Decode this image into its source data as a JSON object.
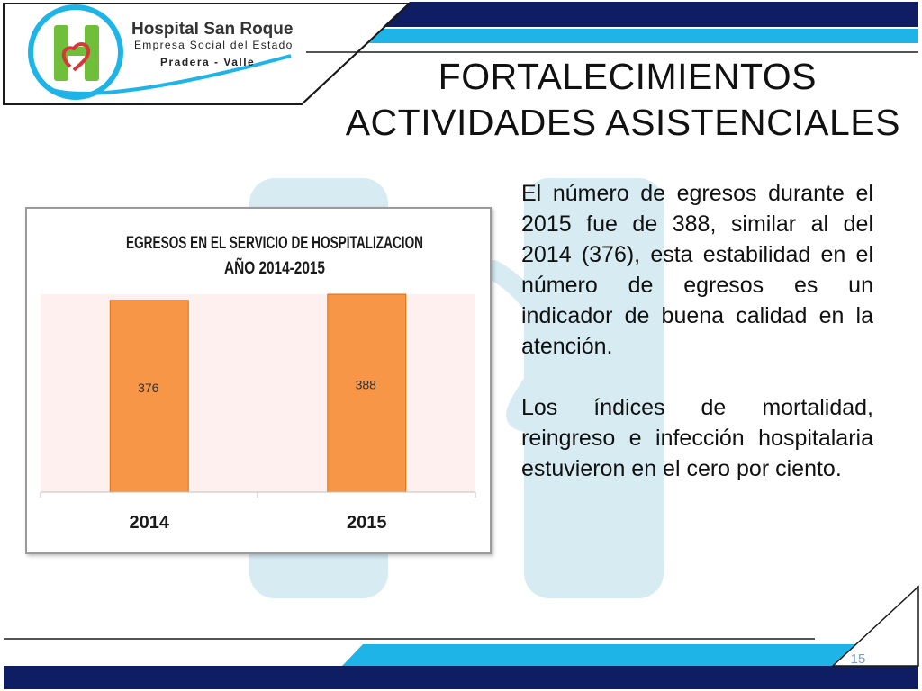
{
  "organization": {
    "name": "Hospital San Roque",
    "subtitle": "Empresa Social del Estado",
    "location": "Pradera - Valle"
  },
  "slide": {
    "title_line1": "FORTALECIMIENTOS",
    "title_line2": "ACTIVIDADES ASISTENCIALES",
    "paragraph1": "El número de egresos durante el  2015 fue de 388, similar al del 2014 (376), esta estabilidad en el número de egresos es un indicador de buena calidad en la atención.",
    "paragraph2": "Los índices de mortalidad, reingreso e infección hospitalaria estuvieron en el cero por ciento.",
    "page_number": "15"
  },
  "colors": {
    "bar": "#f79646",
    "bar_stroke": "#e46c0a",
    "plot_area": "#fdf0ee",
    "header_light_blue": "#1fb4e8",
    "header_dark_blue": "#0f1d63",
    "logo_green": "#6fbf3a",
    "logo_red": "#d6373b"
  },
  "chart_data": {
    "type": "bar",
    "title": "EGRESOS EN EL SERVICIO DE HOSPITALIZACION AÑO 2014-2015",
    "title_lines": [
      "EGRESOS EN EL SERVICIO DE HOSPITALIZACION",
      "AÑO 2014-2015"
    ],
    "categories": [
      "2014",
      "2015"
    ],
    "values": [
      376,
      388
    ],
    "data_labels": [
      "376",
      "388"
    ],
    "xlabel": "",
    "ylabel": "",
    "grid": false,
    "legend": "none"
  }
}
